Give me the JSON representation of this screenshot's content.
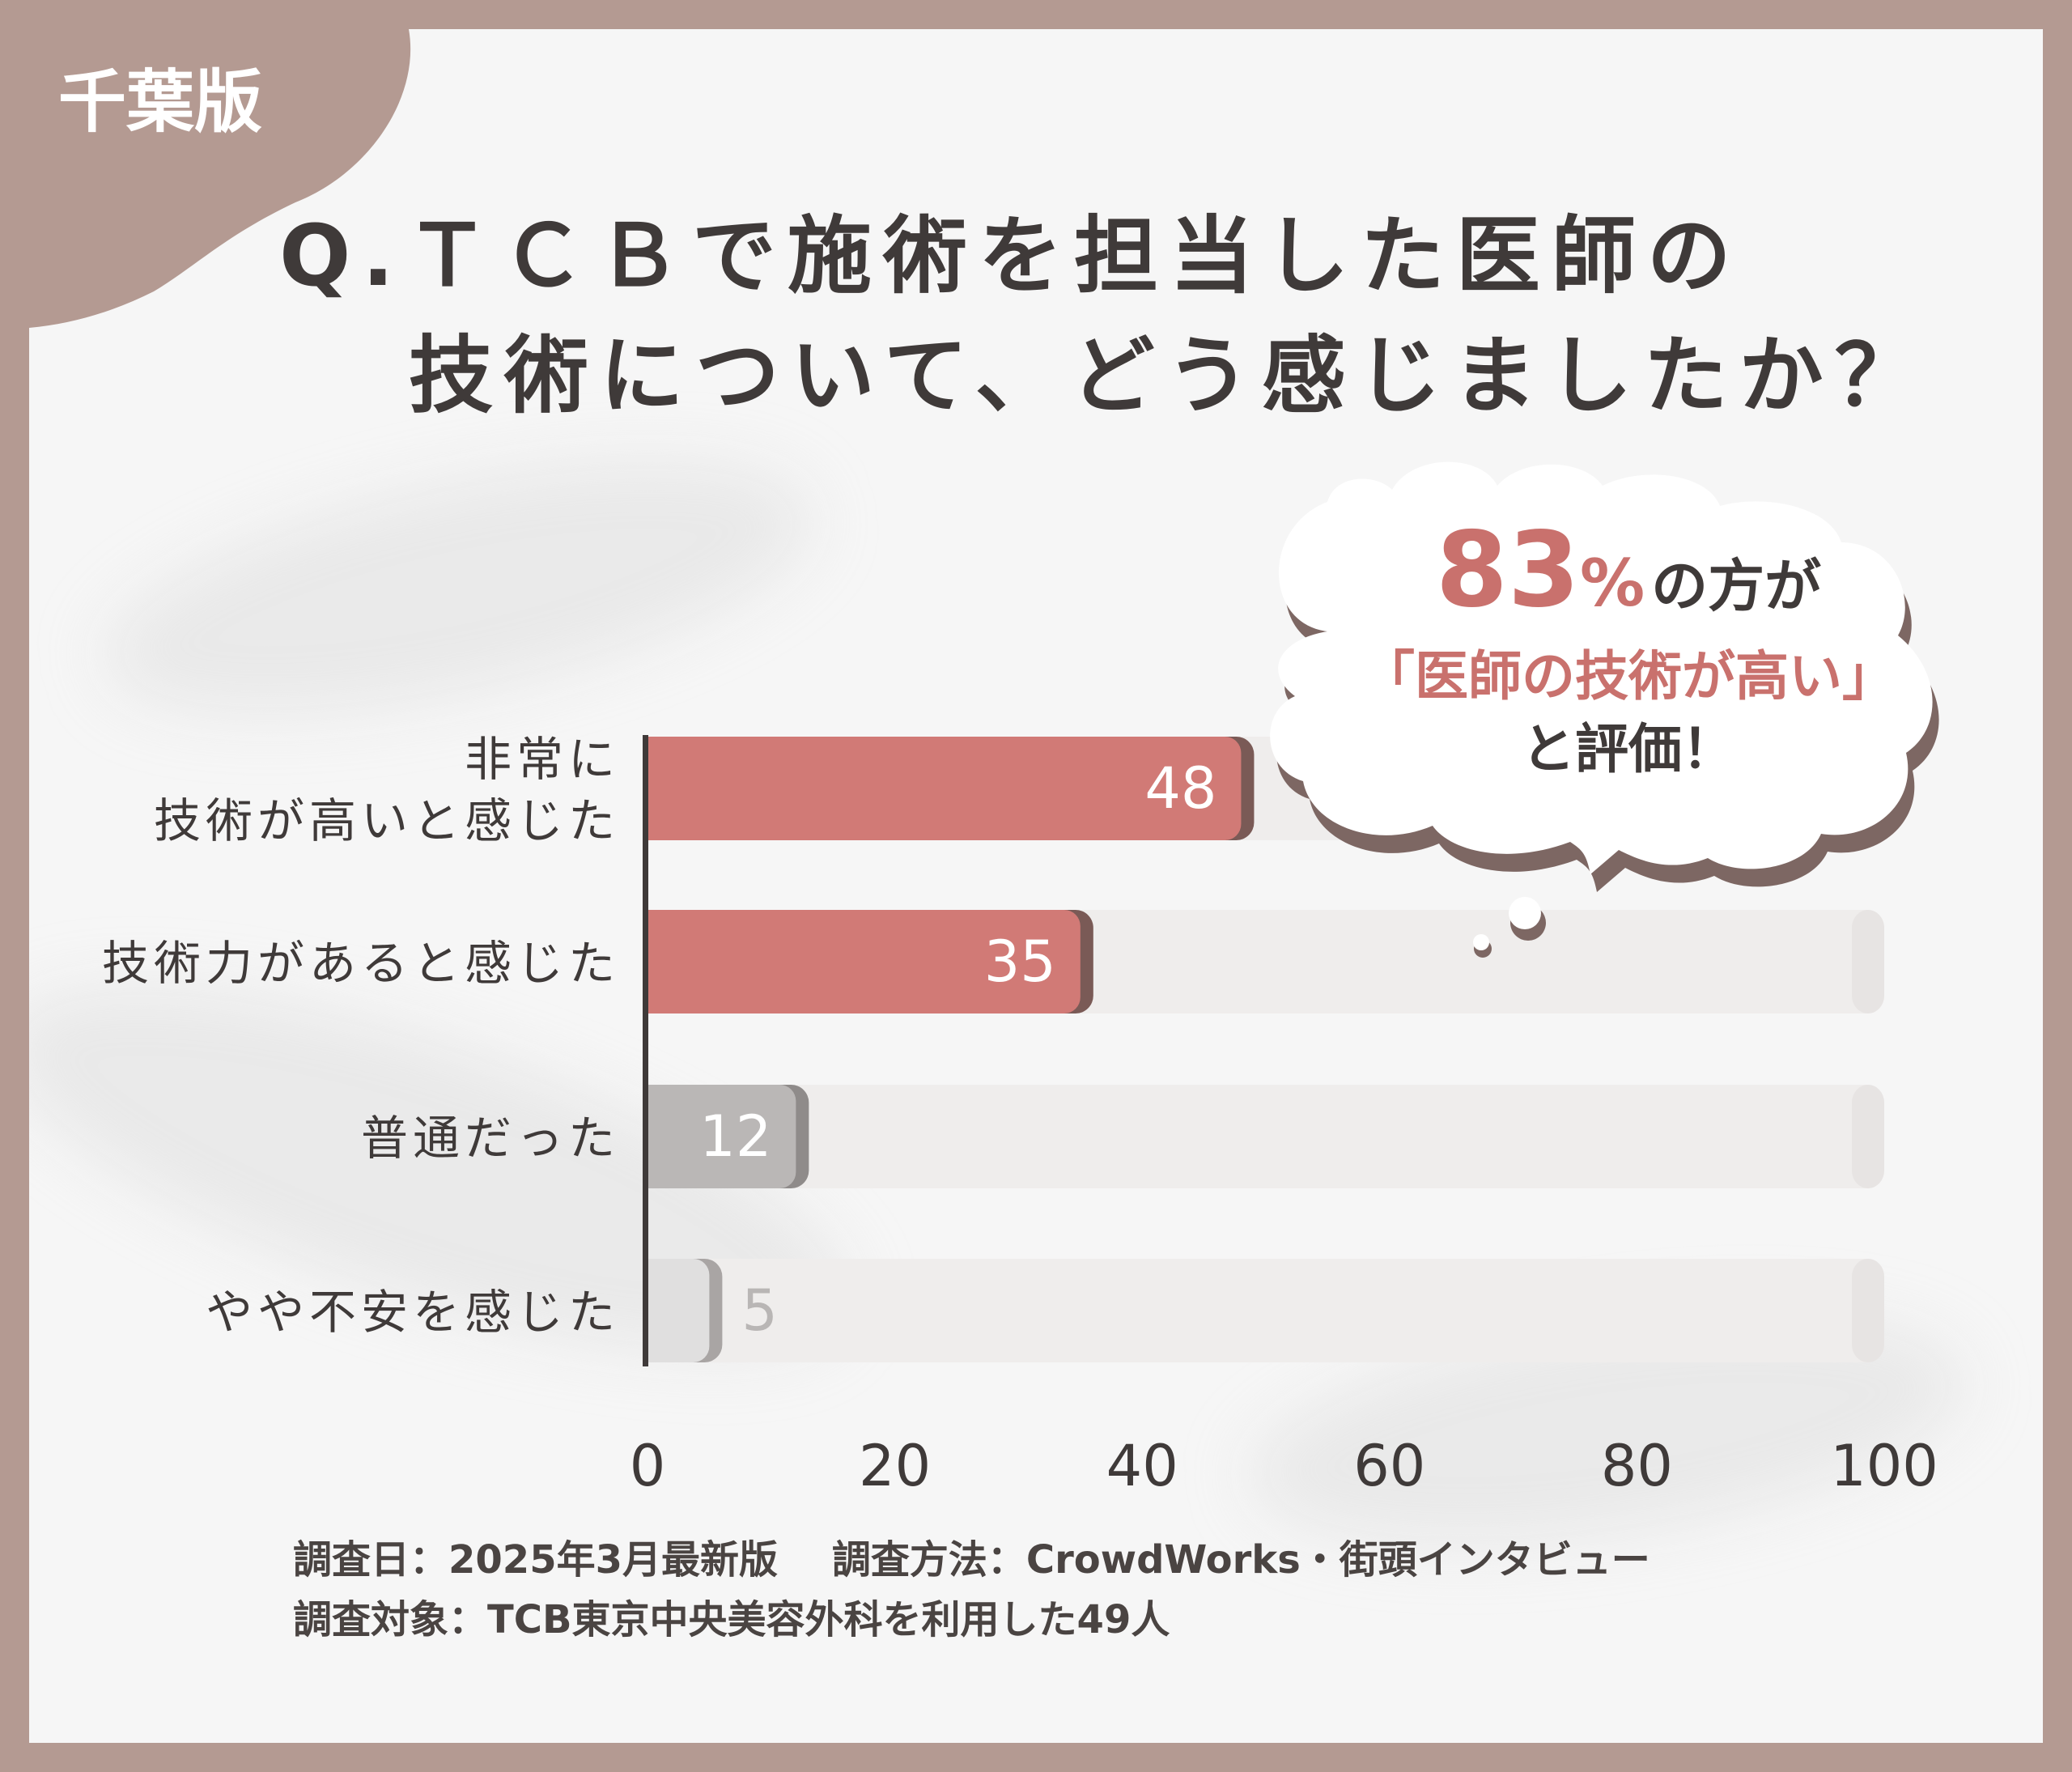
{
  "badge": "千葉版",
  "title_lines": [
    "Q.ＴＣＢで施術を担当した医師の",
    "技術について、どう感じましたか？"
  ],
  "bubble": {
    "percent": "83",
    "percent_sign": "%",
    "line1_rest": "の方が",
    "line2": "「医師の技術が高い」",
    "line3": "と評価！"
  },
  "footer": {
    "survey_date": "調査日：2025年3月最新版",
    "survey_method": "調査方法：CrowdWorks・街頭インタビュー",
    "survey_target": "調査対象：TCB東京中央美容外科を利用した49人"
  },
  "colors": {
    "background": "#b49a92",
    "card": "#f6f6f6",
    "bar_primary": "#d17a76",
    "bar_primary_shadow": "#7a5a56",
    "bar_neutral": "#bab7b6",
    "bar_faint": "#e0dfdf",
    "track": "#efedec",
    "highlight": "#c9716d",
    "text": "#3f3a39"
  },
  "chart_data": {
    "type": "bar",
    "orientation": "horizontal",
    "categories": [
      [
        "非常に",
        "技術が高いと感じた"
      ],
      [
        "技術力があると感じた"
      ],
      [
        "普通だった"
      ],
      [
        "やや不安を感じた"
      ]
    ],
    "values": [
      48,
      35,
      12,
      5
    ],
    "value_labels": [
      "48",
      "35",
      "12",
      "5"
    ],
    "xlim": [
      0,
      100
    ],
    "xticks": [
      "0",
      "20",
      "40",
      "60",
      "80",
      "100"
    ],
    "grid": false,
    "legend": "none"
  }
}
